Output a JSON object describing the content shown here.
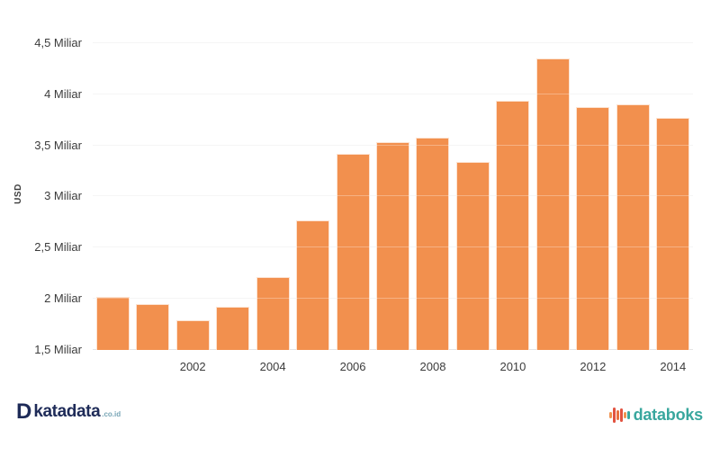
{
  "chart_data": {
    "type": "bar",
    "title": "",
    "xlabel": "",
    "ylabel": "USD",
    "unit": "Miliar",
    "categories": [
      "2000",
      "2001",
      "2002",
      "2003",
      "2004",
      "2005",
      "2006",
      "2007",
      "2008",
      "2009",
      "2010",
      "2011",
      "2012",
      "2013",
      "2014"
    ],
    "values": [
      2.02,
      1.95,
      1.79,
      1.92,
      2.21,
      2.77,
      3.42,
      3.53,
      3.58,
      3.34,
      3.94,
      4.35,
      3.88,
      3.9,
      3.77
    ],
    "ylim": [
      1.5,
      4.5
    ],
    "y_ticks": [
      {
        "value": 1.5,
        "label": "1,5 Miliar"
      },
      {
        "value": 2.0,
        "label": "2 Miliar"
      },
      {
        "value": 2.5,
        "label": "2,5 Miliar"
      },
      {
        "value": 3.0,
        "label": "3 Miliar"
      },
      {
        "value": 3.5,
        "label": "3,5 Miliar"
      },
      {
        "value": 4.0,
        "label": "4 Miliar"
      },
      {
        "value": 4.5,
        "label": "4,5 Miliar"
      }
    ],
    "x_tick_labels": [
      "2002",
      "2004",
      "2006",
      "2008",
      "2010",
      "2012",
      "2014"
    ],
    "grid": true,
    "legend": "none",
    "bar_color": "#F2904E"
  },
  "footer": {
    "katadata": {
      "icon_letter": "D",
      "brand": "katadata",
      "suffix": ".co.id"
    },
    "databoks": {
      "brand": "databoks",
      "icon": "waveform-icon"
    }
  },
  "colors": {
    "bar": "#F2904E",
    "grid_line": "#F1F1F1",
    "axis_text": "#3C3C3C",
    "katadata_navy": "#1E2B58",
    "katadata_suffix": "#77A5B5",
    "databoks_teal": "#39A79E",
    "databoks_icon_red": "#E2523F",
    "databoks_icon_orange": "#F0914E"
  }
}
